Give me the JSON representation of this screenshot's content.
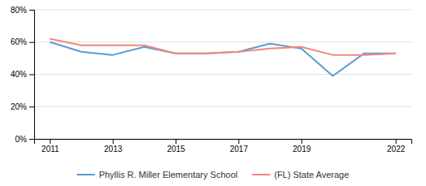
{
  "chart_data": {
    "type": "line",
    "x": [
      2011,
      2012,
      2013,
      2014,
      2015,
      2016,
      2017,
      2018,
      2019,
      2020,
      2021,
      2022
    ],
    "series": [
      {
        "name": "Phyllis R. Miller Elementary School",
        "color": "#5b9bd5",
        "values": [
          0.6,
          0.54,
          0.52,
          0.57,
          0.53,
          0.53,
          0.54,
          0.59,
          0.56,
          0.39,
          0.53,
          0.53
        ]
      },
      {
        "name": "(FL) State Average",
        "color": "#f4877b",
        "values": [
          0.62,
          0.58,
          0.58,
          0.58,
          0.53,
          0.53,
          0.54,
          0.56,
          0.57,
          0.52,
          0.52,
          0.53
        ]
      }
    ],
    "xlim": [
      2010.5,
      2022.5
    ],
    "xticks": [
      2011,
      2013,
      2015,
      2017,
      2019,
      2022
    ],
    "ylim": [
      0,
      0.8
    ],
    "yticks": [
      {
        "value": 0.0,
        "label": "0%"
      },
      {
        "value": 0.2,
        "label": "20%"
      },
      {
        "value": 0.4,
        "label": "40%"
      },
      {
        "value": 0.6,
        "label": "60%"
      },
      {
        "value": 0.8,
        "label": "80%"
      }
    ],
    "grid": true,
    "legend": "bottom"
  }
}
